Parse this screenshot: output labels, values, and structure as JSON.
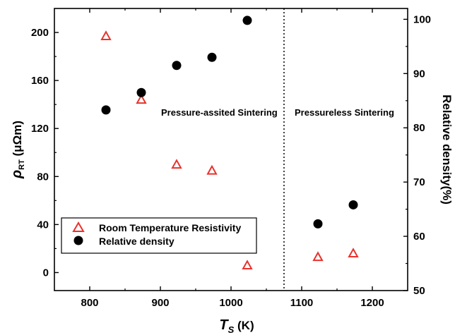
{
  "chart_data": {
    "type": "scatter",
    "x": {
      "label_symbol": "T",
      "label_subscript": "S",
      "label_unit": " (K)",
      "range": [
        750,
        1250
      ],
      "ticks": [
        800,
        900,
        1000,
        1100,
        1200
      ]
    },
    "y_left": {
      "label_symbol": "ρ",
      "label_subscript": "RT",
      "label_unit": " (μΩm)",
      "range": [
        -15,
        220
      ],
      "ticks": [
        0,
        40,
        80,
        120,
        160,
        200
      ]
    },
    "y_right": {
      "label": "Relative density(%)",
      "range": [
        50,
        102
      ],
      "ticks": [
        50,
        60,
        70,
        80,
        90,
        100
      ]
    },
    "series": [
      {
        "name": "Room Temperature Resistivity",
        "axis": "left",
        "marker": "open-triangle",
        "color": "#e8322c",
        "points": [
          [
            823,
            197
          ],
          [
            873,
            144
          ],
          [
            923,
            90
          ],
          [
            973,
            85
          ],
          [
            1023,
            6
          ],
          [
            1123,
            13
          ],
          [
            1173,
            16
          ]
        ]
      },
      {
        "name": "Relative density",
        "axis": "right",
        "marker": "filled-circle",
        "color": "#000000",
        "points": [
          [
            823,
            83.3
          ],
          [
            873,
            86.5
          ],
          [
            923,
            91.5
          ],
          [
            973,
            93.0
          ],
          [
            1023,
            99.8
          ],
          [
            1123,
            62.3
          ],
          [
            1173,
            65.8
          ]
        ]
      }
    ],
    "divider_x": 1075,
    "annotations": {
      "left_region": "Pressure-assited Sintering",
      "right_region": "Pressureless Sintering"
    },
    "legend_position": "bottom-left",
    "grid": false
  }
}
